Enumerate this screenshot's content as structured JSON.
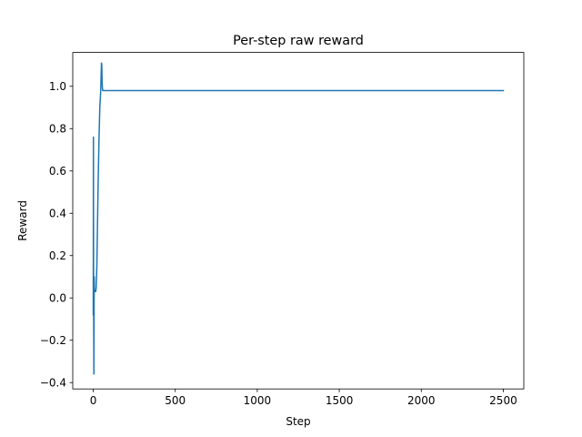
{
  "chart_data": {
    "type": "line",
    "title": "Per-step raw reward",
    "xlabel": "Step",
    "ylabel": "Reward",
    "xlim": [
      -125,
      2625
    ],
    "ylim": [
      -0.43,
      1.16
    ],
    "xticks": [
      0,
      500,
      1000,
      1500,
      2000,
      2500
    ],
    "yticks": [
      -0.4,
      -0.2,
      0.0,
      0.2,
      0.4,
      0.6,
      0.8,
      1.0
    ],
    "ytick_labels": [
      "−0.4",
      "−0.2",
      "0.0",
      "0.2",
      "0.4",
      "0.6",
      "0.8",
      "1.0"
    ],
    "grid": false,
    "series": [
      {
        "color": "#1f77b4",
        "x": [
          0,
          1,
          2,
          3,
          4,
          5,
          6,
          7,
          8,
          10,
          12,
          15,
          18,
          22,
          26,
          30,
          35,
          40,
          45,
          48,
          50,
          52,
          54,
          56,
          58,
          60,
          65,
          70,
          80,
          100,
          500,
          1000,
          1500,
          2000,
          2500
        ],
        "y": [
          -0.08,
          0.76,
          0.1,
          -0.17,
          -0.36,
          -0.05,
          0.1,
          0.05,
          0.03,
          0.03,
          0.03,
          0.03,
          0.05,
          0.15,
          0.35,
          0.55,
          0.75,
          0.9,
          0.97,
          1.05,
          1.11,
          1.1,
          1.02,
          0.99,
          0.98,
          0.98,
          0.98,
          0.98,
          0.98,
          0.98,
          0.98,
          0.98,
          0.98,
          0.98,
          0.98
        ]
      }
    ]
  }
}
